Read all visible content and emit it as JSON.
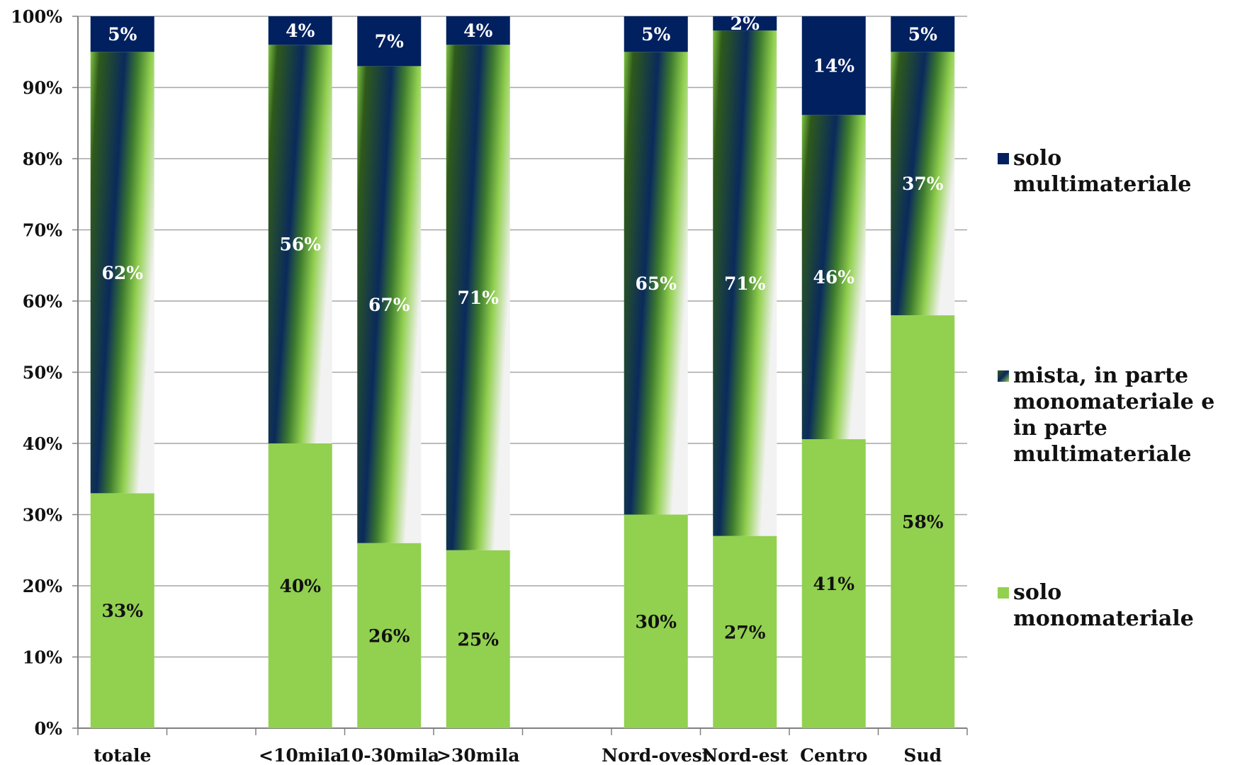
{
  "chart_data": {
    "type": "bar",
    "stacked": true,
    "percent_axis": true,
    "categories": [
      "totale",
      "",
      "<10mila",
      "10-30mila",
      ">30mila",
      "",
      "Nord-ovest",
      "Nord-est",
      "Centro",
      "Sud"
    ],
    "series": [
      {
        "name": "solo monomateriale",
        "values": [
          33,
          null,
          40,
          26,
          25,
          null,
          30,
          27,
          41,
          58
        ],
        "labels": [
          "33%",
          "",
          "40%",
          "26%",
          "25%",
          "",
          "30%",
          "27%",
          "41%",
          "58%"
        ]
      },
      {
        "name": "mista, in parte monomateriale e in parte multimateriale",
        "values": [
          62,
          null,
          56,
          67,
          71,
          null,
          65,
          71,
          46,
          37
        ],
        "labels": [
          "62%",
          "",
          "56%",
          "67%",
          "71%",
          "",
          "65%",
          "71%",
          "46%",
          "37%"
        ]
      },
      {
        "name": "solo multimateriale",
        "values": [
          5,
          null,
          4,
          7,
          4,
          null,
          5,
          2,
          14,
          5
        ],
        "labels": [
          "5%",
          "",
          "4%",
          "7%",
          "4%",
          "",
          "5%",
          "2%",
          "14%",
          "5%"
        ]
      }
    ],
    "y_ticks": [
      "0%",
      "10%",
      "20%",
      "30%",
      "40%",
      "50%",
      "60%",
      "70%",
      "80%",
      "90%",
      "100%"
    ],
    "ylim": [
      0,
      100
    ],
    "grid": true,
    "legend_position": "right"
  },
  "colors": {
    "mono": "#92d050",
    "multi": "#002060",
    "mista_dark": "#0a2a5c",
    "mista_green": "#7cc242",
    "grid": "#a6a6a6",
    "axis": "#808080"
  },
  "legend": {
    "multi_line1": "solo",
    "multi_line2": "multimateriale",
    "mista_line1": "mista, in parte",
    "mista_line2": "monomateriale e",
    "mista_line3": "in parte",
    "mista_line4": "multimateriale",
    "mono_line1": "solo",
    "mono_line2": "monomateriale"
  }
}
